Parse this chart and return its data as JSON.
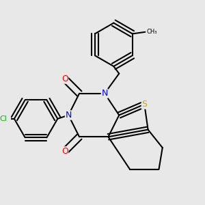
{
  "bg_color": "#e8e8e8",
  "bond_color": "#000000",
  "bond_width": 1.5,
  "atom_colors": {
    "N": "#0000ff",
    "O": "#ff0000",
    "S": "#ccaa00",
    "Cl": "#00bb00",
    "C": "#000000"
  },
  "font_size_atom": 9,
  "font_size_cl": 8
}
